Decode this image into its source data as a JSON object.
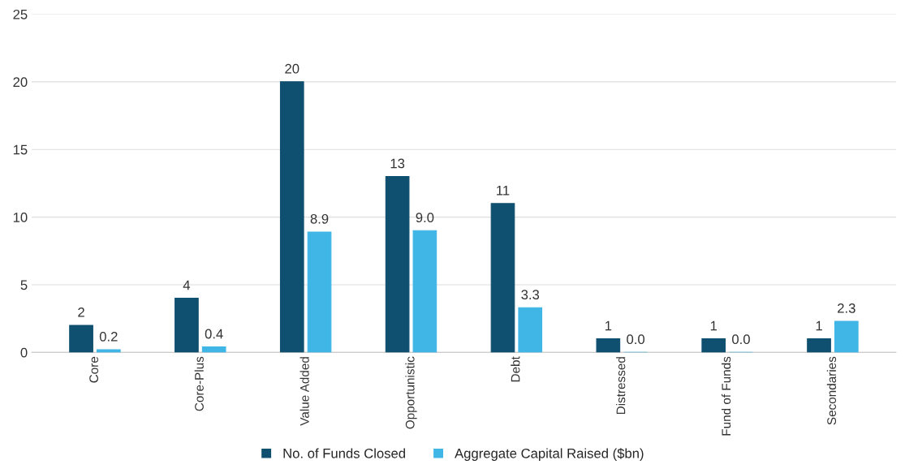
{
  "chart_data": {
    "type": "bar",
    "categories": [
      "Core",
      "Core-Plus",
      "Value Added",
      "Opportunistic",
      "Debt",
      "Distressed",
      "Fund of Funds",
      "Secondaries"
    ],
    "series": [
      {
        "name": "No. of Funds Closed",
        "color": "#0f4f6f",
        "values": [
          2,
          4,
          20,
          13,
          11,
          1,
          1,
          1
        ],
        "value_labels": [
          "2",
          "4",
          "20",
          "13",
          "11",
          "1",
          "1",
          "1"
        ]
      },
      {
        "name": "Aggregate Capital Raised ($bn)",
        "color": "#40b6e6",
        "values": [
          0.2,
          0.4,
          8.9,
          9.0,
          3.3,
          0.0,
          0.0,
          2.3
        ],
        "value_labels": [
          "0.2",
          "0.4",
          "8.9",
          "9.0",
          "3.3",
          "0.0",
          "0.0",
          "2.3"
        ]
      }
    ],
    "ylim": [
      0,
      25
    ],
    "yticks": [
      0,
      5,
      10,
      15,
      20,
      25
    ],
    "grid": "y",
    "legend": "bottom"
  }
}
